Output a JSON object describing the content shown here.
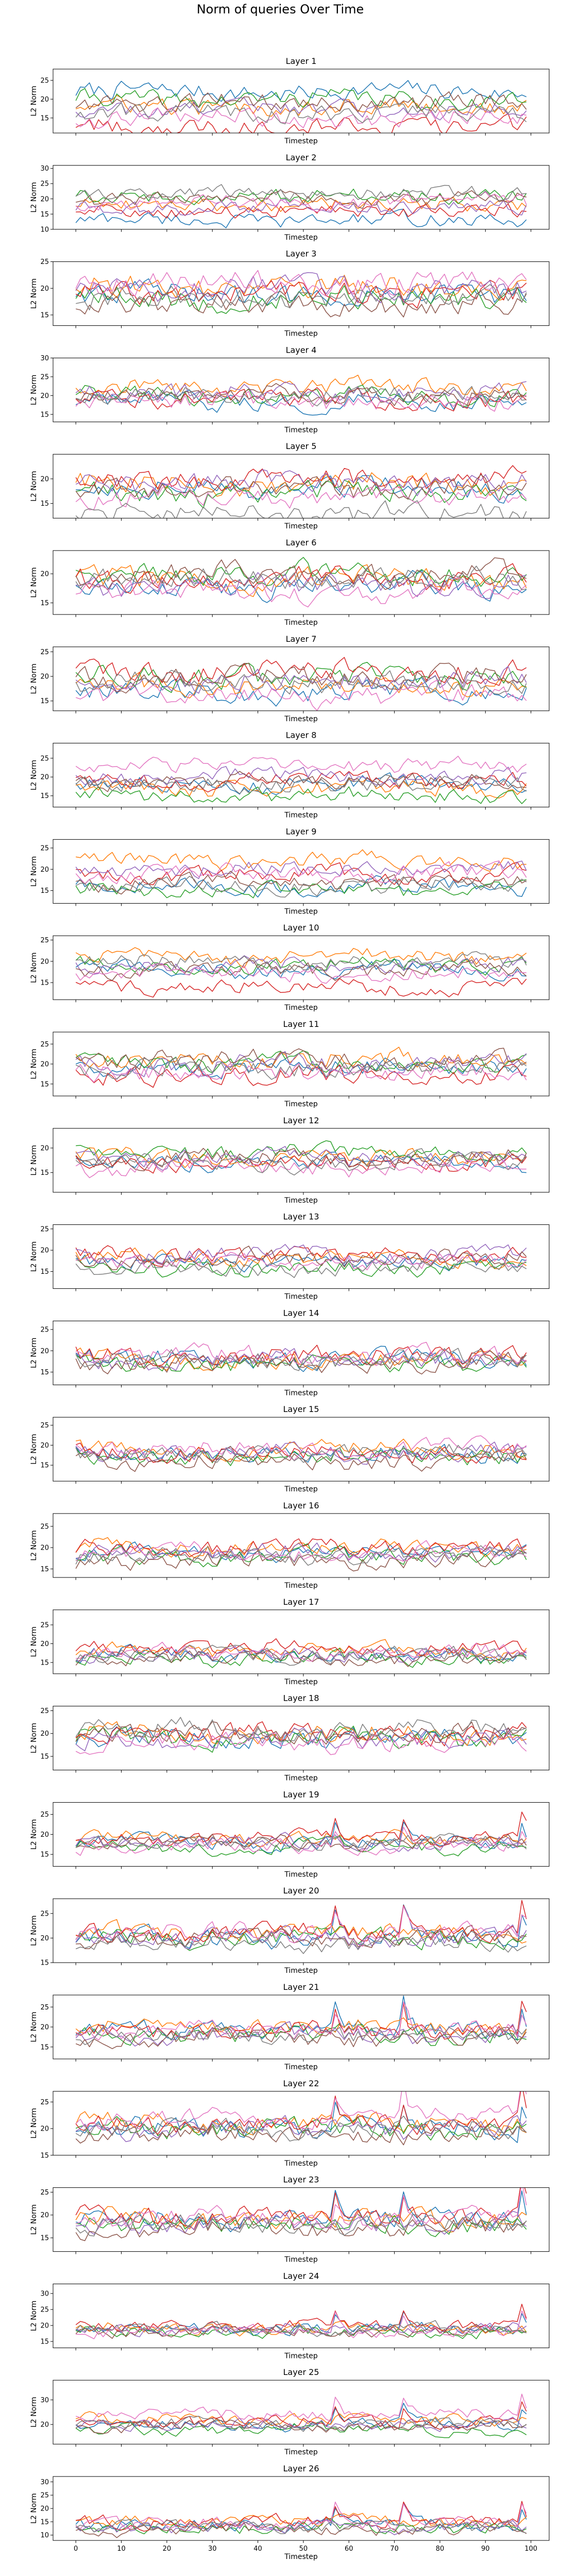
{
  "figure_title": "Norm of queries Over Time",
  "chart_data": {
    "type": "line",
    "xlabel": "Timestep",
    "ylabel": "L2 Norm",
    "xlim": [
      -5,
      104
    ],
    "xticks": [
      0,
      10,
      20,
      30,
      40,
      50,
      60,
      70,
      80,
      90,
      100
    ],
    "x_tick_labels_shown_on": "last panel only",
    "series_colors": [
      "#1f77b4",
      "#ff7f0e",
      "#2ca02c",
      "#d62728",
      "#9467bd",
      "#8c564b",
      "#e377c2",
      "#7f7f7f"
    ],
    "panels": [
      {
        "title": "Layer 1",
        "ylim": [
          11,
          28
        ],
        "yticks": [
          15,
          20,
          25
        ],
        "levels": [
          22,
          18,
          20,
          13,
          17.5,
          19,
          15,
          16.5
        ],
        "amp": 2.0
      },
      {
        "title": "Layer 2",
        "ylim": [
          10,
          31
        ],
        "yticks": [
          10,
          15,
          20,
          25,
          30
        ],
        "levels": [
          13,
          18,
          21,
          16,
          17,
          20,
          19,
          22
        ],
        "amp": 2.0
      },
      {
        "title": "Layer 3",
        "ylim": [
          13,
          25
        ],
        "yticks": [
          15,
          20,
          25
        ],
        "levels": [
          19,
          20,
          18,
          19,
          20,
          17,
          21,
          18
        ],
        "amp": 1.8
      },
      {
        "title": "Layer 4",
        "ylim": [
          13,
          30
        ],
        "yticks": [
          15,
          20,
          25,
          30
        ],
        "levels": [
          18,
          22,
          20,
          19,
          21,
          20,
          18,
          20
        ],
        "amp": 2.0
      },
      {
        "title": "Layer 5",
        "ylim": [
          12,
          25
        ],
        "yticks": [
          15,
          20
        ],
        "levels": [
          18,
          19,
          17,
          20,
          19,
          18,
          16,
          13
        ],
        "amp": 1.8
      },
      {
        "title": "Layer 6",
        "ylim": [
          13,
          24
        ],
        "yticks": [
          15,
          20
        ],
        "levels": [
          18,
          19,
          20,
          19,
          18,
          20,
          17,
          19
        ],
        "amp": 1.6
      },
      {
        "title": "Layer 7",
        "ylim": [
          13,
          26
        ],
        "yticks": [
          15,
          20,
          25
        ],
        "levels": [
          17,
          18,
          20,
          21,
          19,
          20,
          16,
          19
        ],
        "amp": 1.8
      },
      {
        "title": "Layer 8",
        "ylim": [
          12,
          29
        ],
        "yticks": [
          15,
          20,
          25
        ],
        "levels": [
          18,
          17,
          15,
          19,
          20,
          19,
          23,
          18
        ],
        "amp": 1.8
      },
      {
        "title": "Layer 9",
        "ylim": [
          12,
          27
        ],
        "yticks": [
          15,
          20,
          25
        ],
        "levels": [
          16,
          22,
          15,
          19,
          20,
          17,
          19,
          16
        ],
        "amp": 1.6
      },
      {
        "title": "Layer 10",
        "ylim": [
          11,
          26
        ],
        "yticks": [
          15,
          20,
          25
        ],
        "levels": [
          18,
          21,
          19,
          14,
          19,
          18,
          17,
          20
        ],
        "amp": 1.5
      },
      {
        "title": "Layer 11",
        "ylim": [
          12,
          28
        ],
        "yticks": [
          15,
          20,
          25
        ],
        "levels": [
          19,
          21,
          20,
          17,
          20,
          21,
          18,
          19
        ],
        "amp": 2.0
      },
      {
        "title": "Layer 12",
        "ylim": [
          11,
          24
        ],
        "yticks": [
          15,
          20
        ],
        "levels": [
          17,
          18,
          19,
          17,
          18,
          18,
          16,
          17
        ],
        "amp": 1.4
      },
      {
        "title": "Layer 13",
        "ylim": [
          11,
          26
        ],
        "yticks": [
          15,
          20,
          25
        ],
        "levels": [
          17,
          18,
          16,
          19,
          19,
          18,
          17,
          16
        ],
        "amp": 1.6
      },
      {
        "title": "Layer 14",
        "ylim": [
          12,
          27
        ],
        "yticks": [
          15,
          20,
          25
        ],
        "levels": [
          18,
          18,
          17,
          19,
          18,
          17,
          19,
          18
        ],
        "amp": 1.8
      },
      {
        "title": "Layer 15",
        "ylim": [
          11,
          27
        ],
        "yticks": [
          15,
          20,
          25
        ],
        "levels": [
          18,
          19,
          17,
          18,
          18,
          16,
          19,
          18
        ],
        "amp": 1.8
      },
      {
        "title": "Layer 16",
        "ylim": [
          13,
          28
        ],
        "yticks": [
          15,
          20,
          25
        ],
        "levels": [
          19,
          20,
          18,
          20,
          19,
          17,
          19,
          18
        ],
        "amp": 1.6
      },
      {
        "title": "Layer 17",
        "ylim": [
          12,
          29
        ],
        "yticks": [
          15,
          20,
          25
        ],
        "levels": [
          17,
          18,
          16,
          19,
          17,
          16,
          18,
          17
        ],
        "amp": 1.6
      },
      {
        "title": "Layer 18",
        "ylim": [
          12,
          26
        ],
        "yticks": [
          15,
          20,
          25
        ],
        "levels": [
          19,
          20,
          19,
          20,
          19,
          20,
          18,
          21
        ],
        "amp": 1.8
      },
      {
        "title": "Layer 19",
        "ylim": [
          12,
          28
        ],
        "yticks": [
          15,
          20,
          25
        ],
        "levels": [
          18,
          19,
          17,
          19,
          18,
          18,
          17,
          18
        ],
        "amp": 1.4
      },
      {
        "title": "Layer 20",
        "ylim": [
          15,
          28
        ],
        "yticks": [
          15,
          20,
          25
        ],
        "levels": [
          20,
          21,
          20,
          21,
          20,
          20,
          21,
          19
        ],
        "amp": 1.5
      },
      {
        "title": "Layer 21",
        "ylim": [
          12,
          28
        ],
        "yticks": [
          15,
          20,
          25
        ],
        "levels": [
          19,
          20,
          18,
          19,
          18,
          17,
          19,
          18
        ],
        "amp": 1.8
      },
      {
        "title": "Layer 22",
        "ylim": [
          15,
          27
        ],
        "yticks": [
          15,
          20,
          25
        ],
        "levels": [
          20,
          21,
          20,
          21,
          20,
          19,
          22,
          20
        ],
        "amp": 1.5
      },
      {
        "title": "Layer 23",
        "ylim": [
          12,
          26
        ],
        "yticks": [
          15,
          20,
          25
        ],
        "levels": [
          19,
          19,
          18,
          20,
          18,
          17,
          19,
          18
        ],
        "amp": 1.8
      },
      {
        "title": "Layer 24",
        "ylim": [
          13,
          33
        ],
        "yticks": [
          15,
          20,
          25,
          30
        ],
        "levels": [
          19,
          19,
          18,
          20,
          19,
          18,
          18,
          19
        ],
        "amp": 1.5
      },
      {
        "title": "Layer 25",
        "ylim": [
          12,
          38
        ],
        "yticks": [
          20,
          30
        ],
        "levels": [
          20,
          22,
          18,
          21,
          20,
          19,
          24,
          20
        ],
        "amp": 2.0
      },
      {
        "title": "Layer 26",
        "ylim": [
          8,
          32
        ],
        "yticks": [
          10,
          15,
          20,
          25,
          30
        ],
        "levels": [
          14,
          15,
          13,
          15,
          13,
          12,
          14,
          13
        ],
        "amp": 2.0
      }
    ]
  }
}
